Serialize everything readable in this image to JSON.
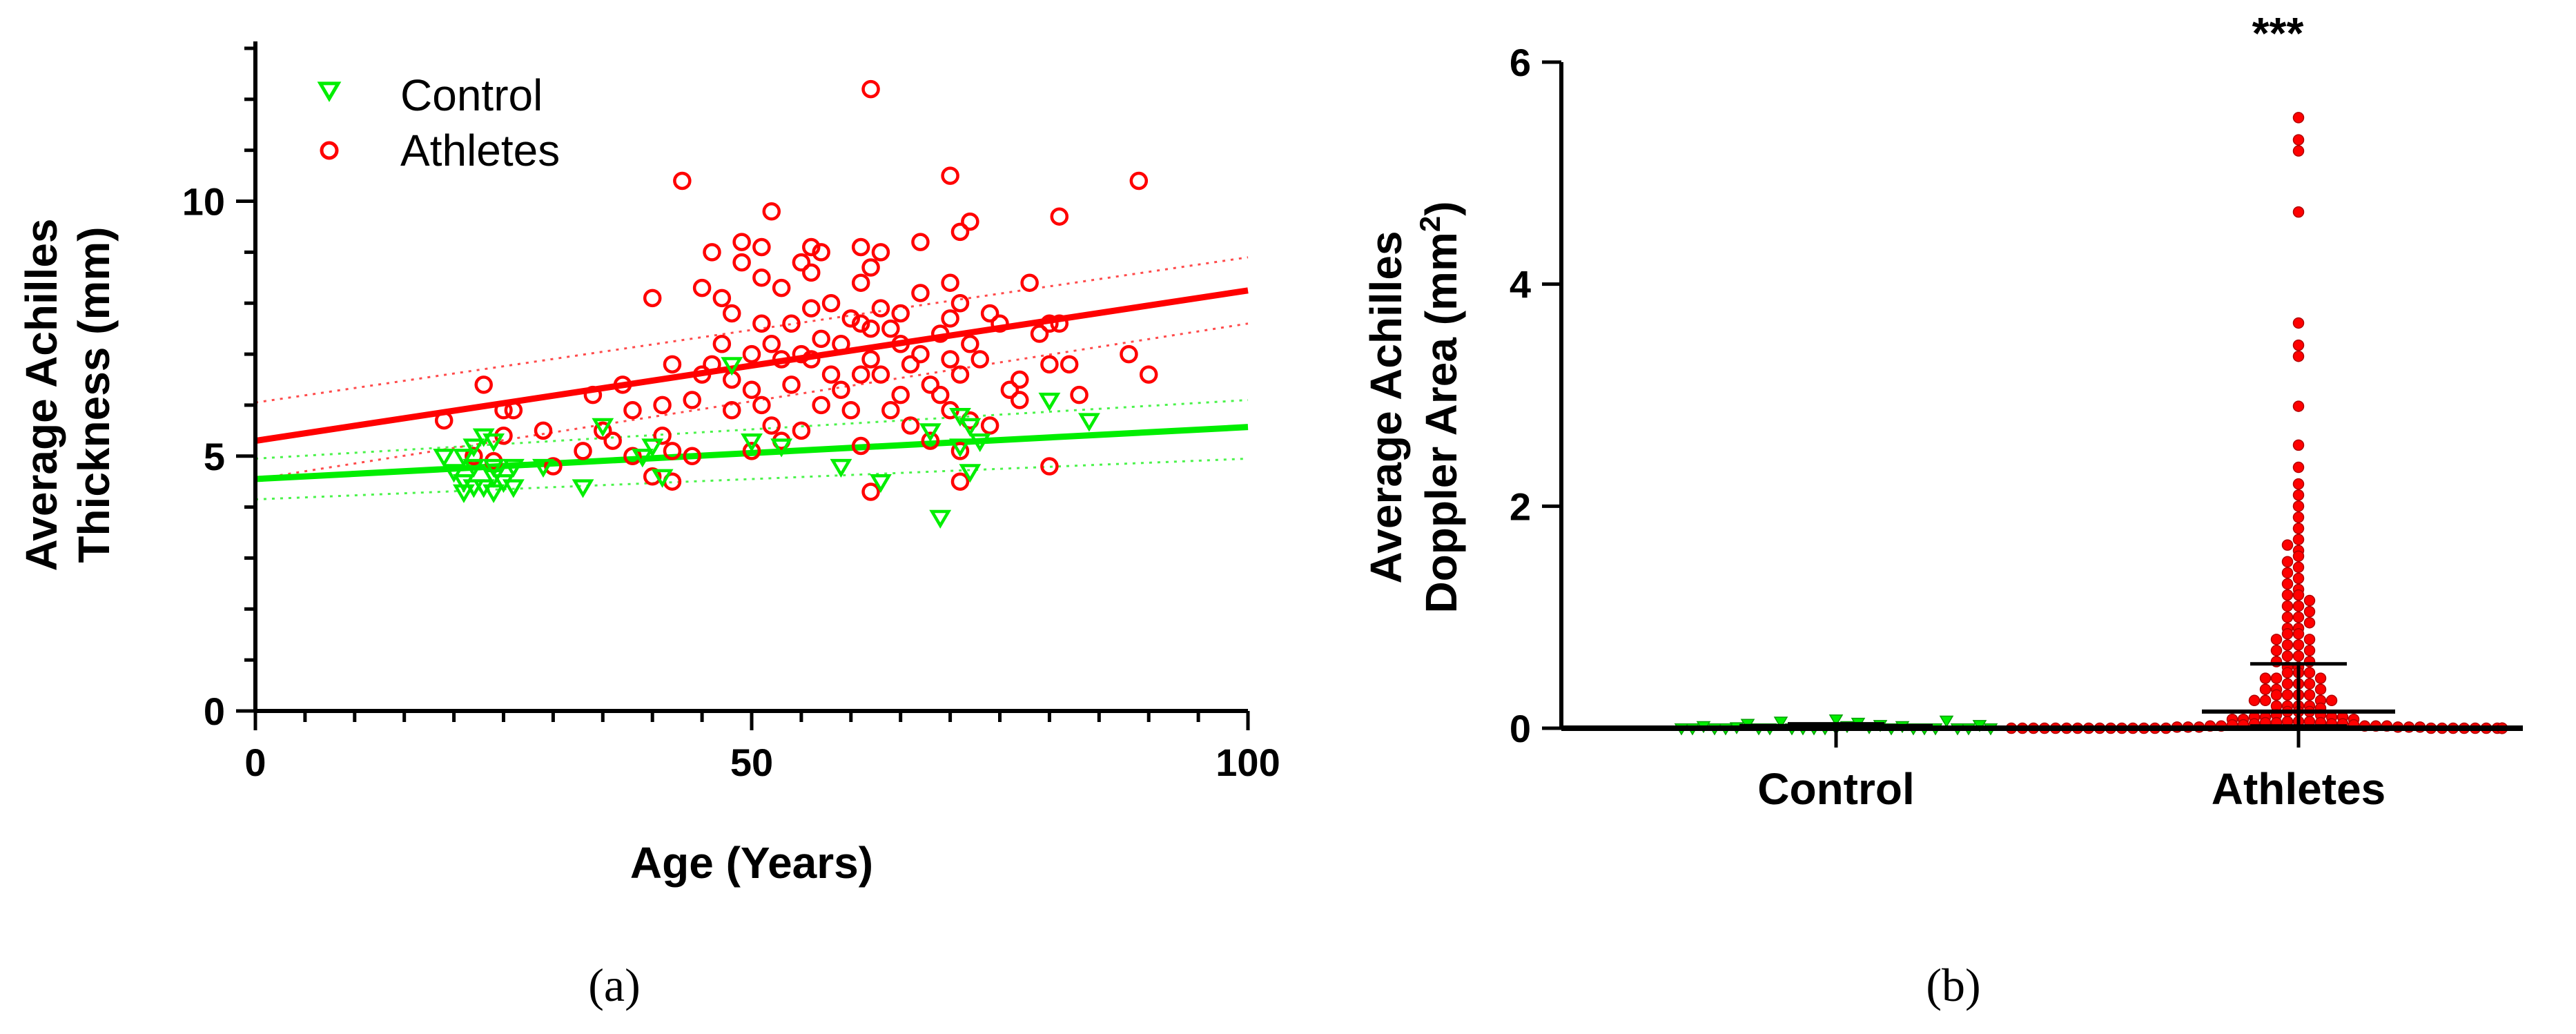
{
  "colors": {
    "control": "#00ee00",
    "athletes": "#ff0000",
    "axis": "#000000"
  },
  "panel_labels": [
    "(a)",
    "(b)"
  ],
  "chart_data": [
    {
      "type": "scatter",
      "title": "",
      "xlabel": "Age (Years)",
      "ylabel_lines": [
        "Average Achilles",
        "Thickness (mm)"
      ],
      "xlim": [
        0,
        100
      ],
      "ylim": [
        0,
        13
      ],
      "xticks": [
        0,
        50,
        100
      ],
      "yticks": [
        0,
        5,
        10
      ],
      "grid": false,
      "legend_position": "top-left",
      "series": [
        {
          "name": "Control",
          "marker": "triangle-down",
          "color": "#00ee00",
          "regression": {
            "intercept": 4.55,
            "slope": 0.0102,
            "ci_low": [
              4.15,
              4.95
            ],
            "ci_high": [
              4.95,
              6.1
            ]
          },
          "points": [
            [
              19,
              5.0
            ],
            [
              20,
              4.7
            ],
            [
              21,
              4.5
            ],
            [
              21,
              4.3
            ],
            [
              21,
              5.0
            ],
            [
              22,
              4.4
            ],
            [
              22,
              5.2
            ],
            [
              22,
              4.8
            ],
            [
              23,
              5.4
            ],
            [
              23,
              4.4
            ],
            [
              24,
              4.3
            ],
            [
              24,
              5.3
            ],
            [
              24,
              4.6
            ],
            [
              24,
              4.8
            ],
            [
              25,
              4.5
            ],
            [
              26,
              4.4
            ],
            [
              26,
              4.8
            ],
            [
              29,
              4.8
            ],
            [
              33,
              4.4
            ],
            [
              35,
              5.6
            ],
            [
              39,
              5.0
            ],
            [
              40,
              5.2
            ],
            [
              41,
              4.6
            ],
            [
              48,
              6.8
            ],
            [
              50,
              5.3
            ],
            [
              53,
              5.2
            ],
            [
              59,
              4.8
            ],
            [
              63,
              4.5
            ],
            [
              68,
              5.5
            ],
            [
              69,
              3.8
            ],
            [
              71,
              5.2
            ],
            [
              71,
              5.8
            ],
            [
              72,
              4.7
            ],
            [
              72,
              5.6
            ],
            [
              73,
              5.3
            ],
            [
              80,
              6.1
            ],
            [
              84,
              5.7
            ]
          ]
        },
        {
          "name": "Athletes",
          "marker": "circle",
          "color": "#ff0000",
          "regression": {
            "intercept": 5.3,
            "slope": 0.0295,
            "ci_low": [
              4.55,
              7.6
            ],
            "ci_high": [
              6.05,
              8.9
            ]
          },
          "points": [
            [
              19,
              5.7
            ],
            [
              22,
              5.0
            ],
            [
              23,
              6.4
            ],
            [
              24,
              4.9
            ],
            [
              25,
              5.9
            ],
            [
              25,
              5.4
            ],
            [
              26,
              5.9
            ],
            [
              29,
              5.5
            ],
            [
              30,
              4.8
            ],
            [
              33,
              5.1
            ],
            [
              34,
              6.2
            ],
            [
              35,
              5.5
            ],
            [
              36,
              5.3
            ],
            [
              37,
              6.4
            ],
            [
              38,
              5.0
            ],
            [
              38,
              5.9
            ],
            [
              40,
              4.6
            ],
            [
              40,
              8.1
            ],
            [
              41,
              5.4
            ],
            [
              41,
              6.0
            ],
            [
              42,
              5.1
            ],
            [
              42,
              6.8
            ],
            [
              42,
              4.5
            ],
            [
              43,
              10.4
            ],
            [
              44,
              6.1
            ],
            [
              44,
              5.0
            ],
            [
              45,
              8.3
            ],
            [
              45,
              6.6
            ],
            [
              46,
              9.0
            ],
            [
              46,
              6.8
            ],
            [
              47,
              8.1
            ],
            [
              47,
              7.2
            ],
            [
              48,
              7.8
            ],
            [
              48,
              6.5
            ],
            [
              48,
              5.9
            ],
            [
              49,
              9.2
            ],
            [
              49,
              8.8
            ],
            [
              50,
              7.0
            ],
            [
              50,
              6.3
            ],
            [
              50,
              5.1
            ],
            [
              51,
              9.1
            ],
            [
              51,
              8.5
            ],
            [
              51,
              7.6
            ],
            [
              51,
              6.0
            ],
            [
              52,
              9.8
            ],
            [
              52,
              7.2
            ],
            [
              52,
              5.6
            ],
            [
              53,
              8.3
            ],
            [
              53,
              6.9
            ],
            [
              53,
              5.3
            ],
            [
              54,
              7.6
            ],
            [
              54,
              6.4
            ],
            [
              55,
              8.8
            ],
            [
              55,
              7.0
            ],
            [
              55,
              5.5
            ],
            [
              56,
              9.1
            ],
            [
              56,
              8.6
            ],
            [
              56,
              7.9
            ],
            [
              56,
              6.9
            ],
            [
              57,
              9.0
            ],
            [
              57,
              7.3
            ],
            [
              57,
              6.0
            ],
            [
              58,
              8.0
            ],
            [
              58,
              6.6
            ],
            [
              59,
              7.2
            ],
            [
              59,
              6.3
            ],
            [
              60,
              7.7
            ],
            [
              60,
              5.9
            ],
            [
              61,
              9.1
            ],
            [
              61,
              8.4
            ],
            [
              61,
              7.6
            ],
            [
              61,
              6.6
            ],
            [
              61,
              5.2
            ],
            [
              62,
              12.2
            ],
            [
              62,
              8.7
            ],
            [
              62,
              7.5
            ],
            [
              62,
              6.9
            ],
            [
              62,
              4.3
            ],
            [
              63,
              9.0
            ],
            [
              63,
              7.9
            ],
            [
              63,
              6.6
            ],
            [
              64,
              7.5
            ],
            [
              64,
              5.9
            ],
            [
              65,
              7.8
            ],
            [
              65,
              7.2
            ],
            [
              65,
              6.2
            ],
            [
              66,
              6.8
            ],
            [
              66,
              5.6
            ],
            [
              67,
              9.2
            ],
            [
              67,
              8.2
            ],
            [
              67,
              7.0
            ],
            [
              68,
              6.4
            ],
            [
              68,
              5.3
            ],
            [
              69,
              7.4
            ],
            [
              69,
              6.2
            ],
            [
              70,
              10.5
            ],
            [
              70,
              8.4
            ],
            [
              70,
              7.7
            ],
            [
              70,
              6.9
            ],
            [
              70,
              5.9
            ],
            [
              71,
              9.4
            ],
            [
              71,
              8.0
            ],
            [
              71,
              6.6
            ],
            [
              71,
              5.1
            ],
            [
              71,
              4.5
            ],
            [
              72,
              9.6
            ],
            [
              72,
              7.2
            ],
            [
              72,
              5.7
            ],
            [
              73,
              6.9
            ],
            [
              74,
              7.8
            ],
            [
              74,
              5.6
            ],
            [
              75,
              7.6
            ],
            [
              76,
              6.3
            ],
            [
              77,
              6.1
            ],
            [
              77,
              6.5
            ],
            [
              78,
              8.4
            ],
            [
              79,
              7.4
            ],
            [
              80,
              7.6
            ],
            [
              80,
              6.8
            ],
            [
              80,
              4.8
            ],
            [
              81,
              9.7
            ],
            [
              81,
              7.6
            ],
            [
              82,
              6.8
            ],
            [
              83,
              6.2
            ],
            [
              88,
              7.0
            ],
            [
              89,
              10.4
            ],
            [
              90,
              6.6
            ]
          ]
        }
      ]
    },
    {
      "type": "scatter",
      "title": "",
      "xlabel": "",
      "ylabel_lines": [
        "Average Achilles",
        "Doppler Area (mm",
        "2",
        ")"
      ],
      "categories": [
        "Control",
        "Athletes"
      ],
      "ylim": [
        0,
        6
      ],
      "yticks": [
        0,
        2,
        4,
        6
      ],
      "grid": false,
      "significance": "***",
      "series": [
        {
          "name": "Control",
          "marker": "triangle-down",
          "color": "#00ee00",
          "median": 0.02,
          "iqr": [
            0.0,
            0.04
          ],
          "values": [
            0.0,
            0.0,
            0.02,
            0.0,
            0.05,
            0.0,
            0.01,
            0.0,
            0.03,
            0.06,
            0.0,
            0.0,
            0.02,
            0.0,
            0.0,
            0.04,
            0.0,
            0.01,
            0.0,
            0.0,
            0.07,
            0.0,
            0.0,
            0.02,
            0.0,
            0.0,
            0.03,
            0.0,
            0.0,
            0.08
          ]
        },
        {
          "name": "Athletes",
          "marker": "circle",
          "color": "#ff0000",
          "median": 0.15,
          "iqr": [
            0.02,
            0.58
          ],
          "values": [
            5.5,
            5.3,
            5.2,
            4.65,
            3.65,
            3.45,
            3.35,
            2.9,
            2.55,
            2.35,
            2.2,
            2.1,
            2.0,
            1.9,
            1.8,
            1.7,
            1.65,
            1.6,
            1.55,
            1.5,
            1.45,
            1.4,
            1.35,
            1.3,
            1.25,
            1.2,
            1.2,
            1.15,
            1.1,
            1.1,
            1.05,
            1.0,
            1.0,
            0.95,
            0.9,
            0.9,
            0.85,
            0.85,
            0.8,
            0.8,
            0.75,
            0.75,
            0.7,
            0.7,
            0.65,
            0.65,
            0.6,
            0.6,
            0.55,
            0.55,
            0.5,
            0.5,
            0.5,
            0.45,
            0.45,
            0.45,
            0.4,
            0.4,
            0.4,
            0.35,
            0.35,
            0.35,
            0.3,
            0.3,
            0.3,
            0.3,
            0.25,
            0.25,
            0.25,
            0.25,
            0.2,
            0.2,
            0.2,
            0.2,
            0.18,
            0.15,
            0.15,
            0.15,
            0.12,
            0.12,
            0.1,
            0.1,
            0.1,
            0.1,
            0.08,
            0.08,
            0.08,
            0.06,
            0.06,
            0.06,
            0.05,
            0.05,
            0.05,
            0.04,
            0.04,
            0.04,
            0.03,
            0.03,
            0.03,
            0.02,
            0.02,
            0.02,
            0.02,
            0.02,
            0.01,
            0.01,
            0.01,
            0.01,
            0.01,
            0.01,
            0.0,
            0.0,
            0.0,
            0.0,
            0.0,
            0.0,
            0.0,
            0.0,
            0.0,
            0.0,
            0.0,
            0.0,
            0.0,
            0.0,
            0.0,
            0.0,
            0.0,
            0.0,
            0.0,
            0.0,
            0.0,
            0.0,
            0.0,
            0.0,
            0.0,
            0.0,
            0.0,
            0.0,
            0.0,
            0.0
          ]
        }
      ]
    }
  ]
}
